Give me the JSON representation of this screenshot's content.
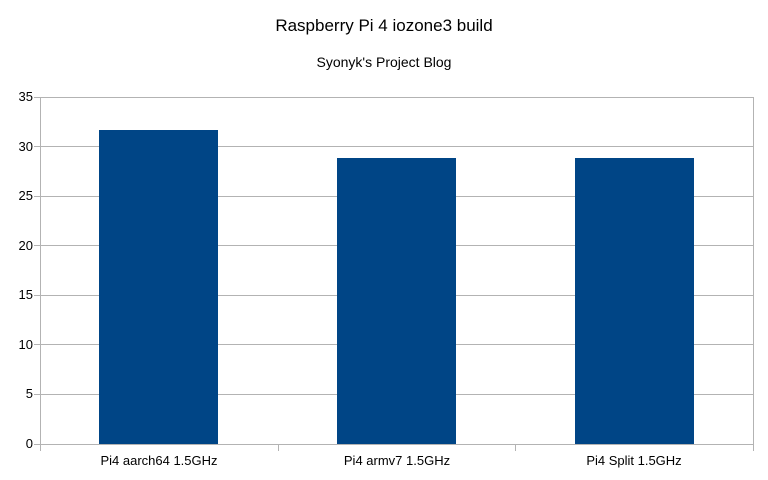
{
  "chart_data": {
    "type": "bar",
    "title": "Raspberry Pi 4 iozone3 build",
    "subtitle": "Syonyk's Project Blog",
    "categories": [
      "Pi4 aarch64 1.5GHz",
      "Pi4 armv7 1.5GHz",
      "Pi4 Split 1.5GHz"
    ],
    "values": [
      31.7,
      28.8,
      28.8
    ],
    "xlabel": "",
    "ylabel": "",
    "ylim": [
      0,
      35
    ],
    "yticks": [
      0,
      5,
      10,
      15,
      20,
      25,
      30,
      35
    ],
    "grid": "horizontal-only",
    "legend": "none",
    "colors": {
      "bar": "#004586",
      "gridline": "#b3b3b3",
      "axis": "#b3b3b3",
      "text": "#000000",
      "background": "#ffffff"
    }
  }
}
